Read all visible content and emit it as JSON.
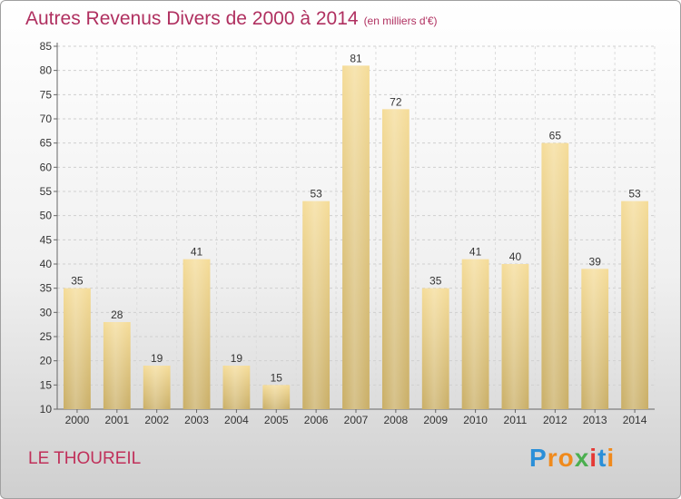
{
  "title": "Autres Revenus Divers de 2000 à 2014",
  "title_unit": "(en milliers d'€)",
  "commune": "LE THOUREIL",
  "logo": {
    "letters": [
      "P",
      "r",
      "o",
      "x",
      "i",
      "t",
      "i"
    ],
    "colors": [
      "#2a8fd8",
      "#f08a1c",
      "#f08a1c",
      "#4caf50",
      "#e53935",
      "#2a8fd8",
      "#f08a1c"
    ]
  },
  "chart_data": {
    "type": "bar",
    "title": "Autres Revenus Divers de 2000 à 2014",
    "categories": [
      "2000",
      "2001",
      "2002",
      "2003",
      "2004",
      "2005",
      "2006",
      "2007",
      "2008",
      "2009",
      "2010",
      "2011",
      "2012",
      "2013",
      "2014"
    ],
    "values": [
      35,
      28,
      19,
      41,
      19,
      15,
      53,
      81,
      72,
      35,
      41,
      40,
      65,
      39,
      53
    ],
    "ylim": [
      10,
      85
    ],
    "yticks": [
      10,
      15,
      20,
      25,
      30,
      35,
      40,
      45,
      50,
      55,
      60,
      65,
      70,
      75,
      80,
      85
    ],
    "grid": true,
    "bar_color": "#e8cc80"
  }
}
